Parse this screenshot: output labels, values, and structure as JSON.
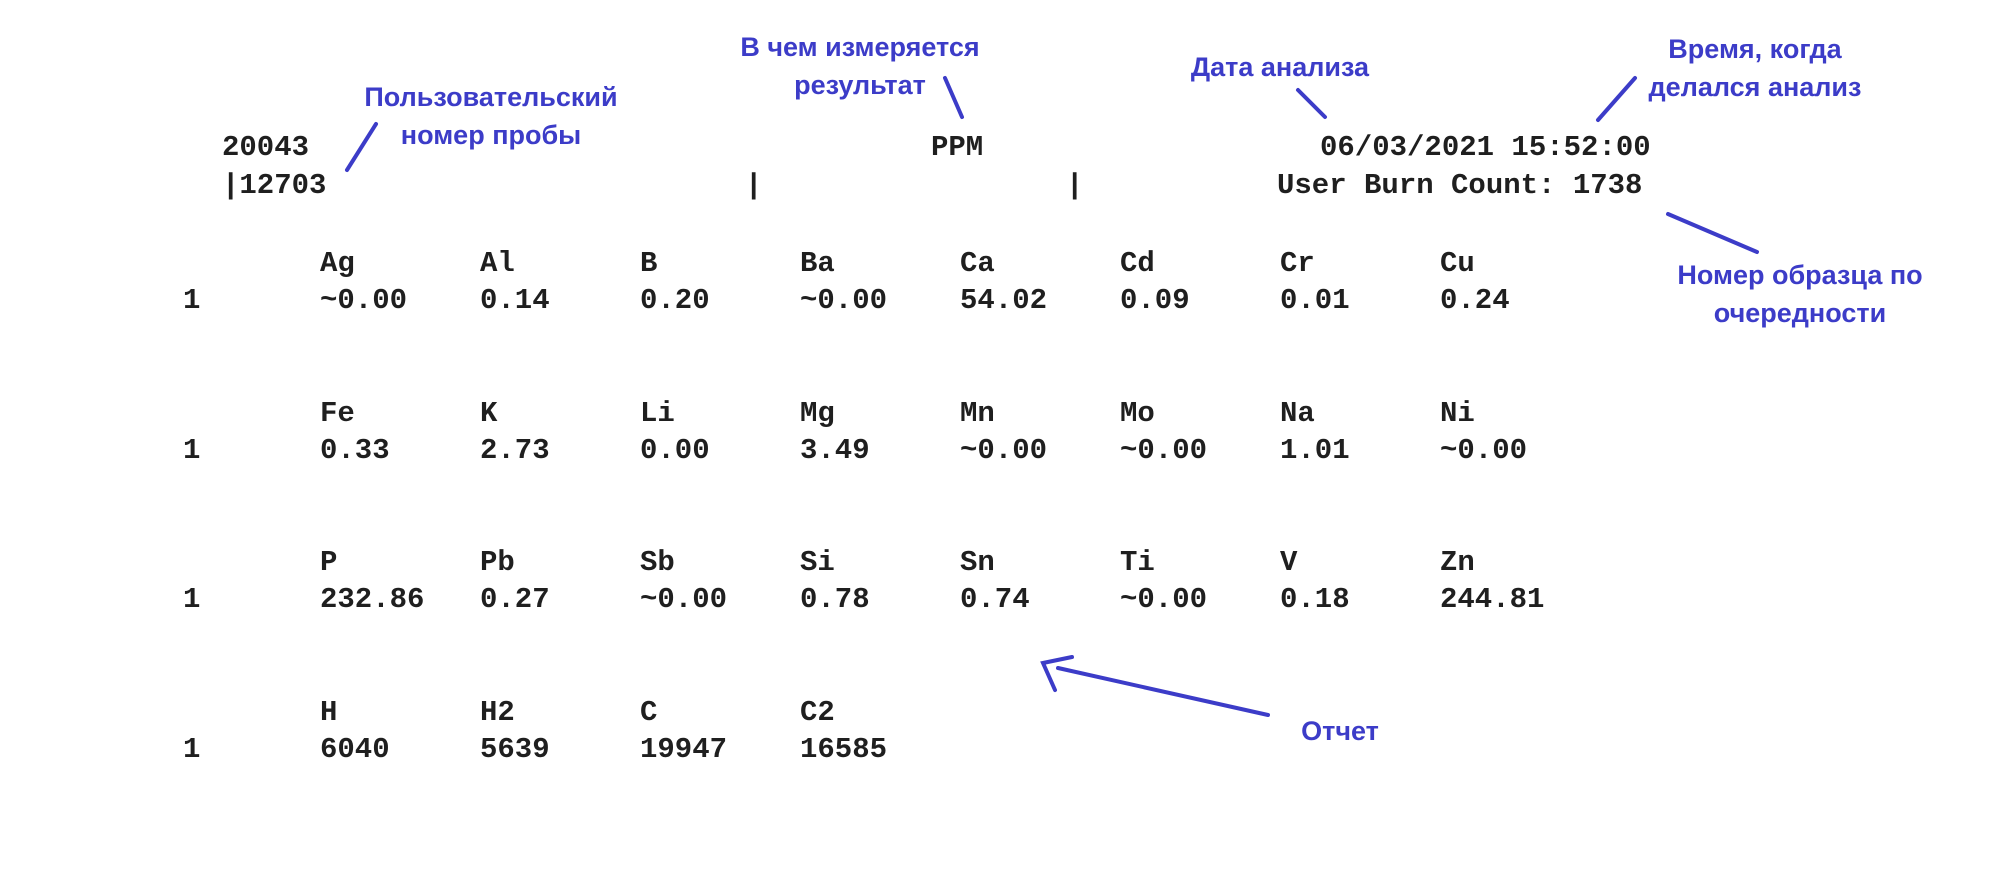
{
  "annotation_color": "#3c3cc8",
  "report": {
    "sample_id": "20043",
    "user_number": "|12703",
    "separator_1": "|",
    "separator_2": "|",
    "units": "PPM",
    "datetime": "06/03/2021 15:52:00",
    "burn_count": "User Burn Count: 1738"
  },
  "blocks": [
    {
      "row": "1",
      "elements": [
        "Ag",
        "Al",
        "B",
        "Ba",
        "Ca",
        "Cd",
        "Cr",
        "Cu"
      ],
      "values": [
        "~0.00",
        "0.14",
        "0.20",
        "~0.00",
        "54.02",
        "0.09",
        "0.01",
        "0.24"
      ]
    },
    {
      "row": "1",
      "elements": [
        "Fe",
        "K",
        "Li",
        "Mg",
        "Mn",
        "Mo",
        "Na",
        "Ni"
      ],
      "values": [
        "0.33",
        "2.73",
        "0.00",
        "3.49",
        "~0.00",
        "~0.00",
        "1.01",
        "~0.00"
      ]
    },
    {
      "row": "1",
      "elements": [
        "P",
        "Pb",
        "Sb",
        "Si",
        "Sn",
        "Ti",
        "V",
        "Zn"
      ],
      "values": [
        "232.86",
        "0.27",
        "~0.00",
        "0.78",
        "0.74",
        "~0.00",
        "0.18",
        "244.81"
      ]
    },
    {
      "row": "1",
      "elements": [
        "H",
        "H2",
        "C",
        "C2"
      ],
      "values": [
        "6040",
        "5639",
        "19947",
        "16585"
      ]
    }
  ],
  "annotations": {
    "user_sample_number": [
      "Пользовательский",
      "номер пробы"
    ],
    "units_note": [
      "В чем измеряется",
      "результат"
    ],
    "date_note": [
      "Дата анализа"
    ],
    "time_note": [
      "Время, когда",
      "делался анализ"
    ],
    "sequence_note": [
      "Номер образца по",
      "очередности"
    ],
    "report_note": [
      "Отчет"
    ]
  }
}
